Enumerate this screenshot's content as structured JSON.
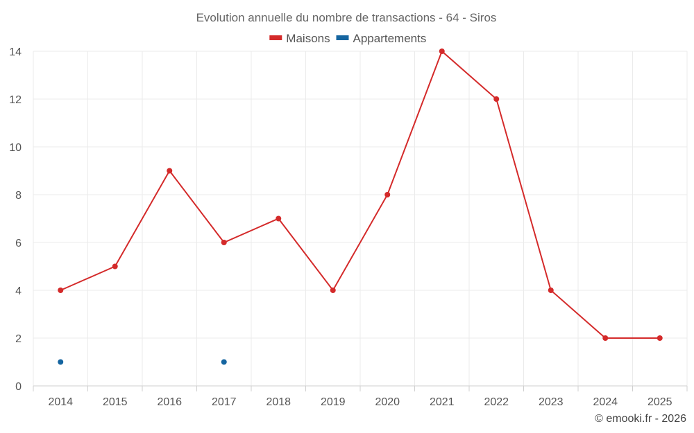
{
  "chart_data": {
    "type": "line",
    "title": "Evolution annuelle du nombre de transactions - 64 - Siros",
    "categories": [
      "2014",
      "2015",
      "2016",
      "2017",
      "2018",
      "2019",
      "2020",
      "2021",
      "2022",
      "2023",
      "2024",
      "2025"
    ],
    "series": [
      {
        "name": "Maisons",
        "color": "#d42a2a",
        "values": [
          4,
          5,
          9,
          6,
          7,
          4,
          8,
          14,
          12,
          4,
          2,
          2
        ]
      },
      {
        "name": "Appartements",
        "color": "#1565a0",
        "values": [
          1,
          null,
          null,
          1,
          null,
          null,
          null,
          null,
          null,
          null,
          null,
          null
        ]
      }
    ],
    "ylim": [
      0,
      14
    ],
    "yticks": [
      0,
      2,
      4,
      6,
      8,
      10,
      12,
      14
    ],
    "xlabel": "",
    "ylabel": "",
    "grid": true,
    "legend": "top-center"
  },
  "credit": "© emooki.fr - 2026"
}
